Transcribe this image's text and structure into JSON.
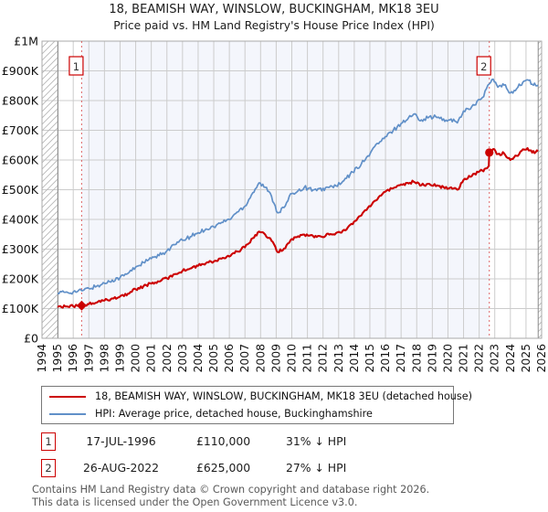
{
  "page": {
    "title_line1": "18, BEAMISH WAY, WINSLOW, BUCKINGHAM, MK18 3EU",
    "title_line2": "Price paid vs. HM Land Registry's House Price Index (HPI)"
  },
  "colors": {
    "property_line": "#cc0000",
    "hpi_line": "#6190c8",
    "ownership_shade": "#f4f6fc",
    "gridline": "#cccccc",
    "plot_border": "#aaaaaa",
    "hatch_line": "#b8b8b8",
    "hatch_edge": "#8c8c8c",
    "tick_text": "#111111"
  },
  "chart_data": {
    "type": "line",
    "title": "18, BEAMISH WAY, WINSLOW, BUCKINGHAM, MK18 3EU",
    "subtitle": "Price paid vs. HM Land Registry's House Price Index (HPI)",
    "x_axis": {
      "range": [
        1994,
        2026
      ],
      "tick_years": [
        1994,
        1995,
        1996,
        1997,
        1998,
        1999,
        2000,
        2001,
        2002,
        2003,
        2004,
        2005,
        2006,
        2007,
        2008,
        2009,
        2010,
        2011,
        2012,
        2013,
        2014,
        2015,
        2016,
        2017,
        2018,
        2019,
        2020,
        2021,
        2022,
        2023,
        2024,
        2025,
        2026
      ]
    },
    "y_axis": {
      "range": [
        0,
        1000000
      ],
      "ticks": [
        {
          "value": 0,
          "label": "£0"
        },
        {
          "value": 100000,
          "label": "£100K"
        },
        {
          "value": 200000,
          "label": "£200K"
        },
        {
          "value": 300000,
          "label": "£300K"
        },
        {
          "value": 400000,
          "label": "£400K"
        },
        {
          "value": 500000,
          "label": "£500K"
        },
        {
          "value": 600000,
          "label": "£600K"
        },
        {
          "value": 700000,
          "label": "£700K"
        },
        {
          "value": 800000,
          "label": "£800K"
        },
        {
          "value": 900000,
          "label": "£900K"
        },
        {
          "value": 1000000,
          "label": "£1M"
        }
      ]
    },
    "grid": true,
    "legend_position": "below",
    "ownership_shading": {
      "from_year": 1996.54,
      "to_year": 2022.65
    },
    "no_data_hatch": [
      {
        "from_year": 1994,
        "to_year": 1995.02
      },
      {
        "from_year": 2025.78,
        "to_year": 2026
      }
    ],
    "sale_markers": [
      {
        "label": "1",
        "year": 1996.54,
        "price_gbp": 110000,
        "shape": "diamond"
      },
      {
        "label": "2",
        "year": 2022.65,
        "price_gbp": 625000,
        "shape": "circle"
      }
    ],
    "series": [
      {
        "name": "18, BEAMISH WAY, WINSLOW, BUCKINGHAM, MK18 3EU (detached house)",
        "color": "#cc0000",
        "points_year_gbp": [
          [
            1995.0,
            105000
          ],
          [
            1995.5,
            107000
          ],
          [
            1996.0,
            107500
          ],
          [
            1996.54,
            110000
          ],
          [
            1997.0,
            115000
          ],
          [
            1997.5,
            120000
          ],
          [
            1998.0,
            127000
          ],
          [
            1998.5,
            134000
          ],
          [
            1999.0,
            141000
          ],
          [
            1999.5,
            150000
          ],
          [
            2000.0,
            165000
          ],
          [
            2000.5,
            175000
          ],
          [
            2001.0,
            184000
          ],
          [
            2001.5,
            191000
          ],
          [
            2002.0,
            202000
          ],
          [
            2002.5,
            216000
          ],
          [
            2003.0,
            227000
          ],
          [
            2003.5,
            235000
          ],
          [
            2004.0,
            244000
          ],
          [
            2004.5,
            253000
          ],
          [
            2005.0,
            258000
          ],
          [
            2005.5,
            268000
          ],
          [
            2006.0,
            275000
          ],
          [
            2006.5,
            292000
          ],
          [
            2007.0,
            306000
          ],
          [
            2007.5,
            337000
          ],
          [
            2007.9,
            359000
          ],
          [
            2008.3,
            349000
          ],
          [
            2008.7,
            328000
          ],
          [
            2009.1,
            290000
          ],
          [
            2009.5,
            302000
          ],
          [
            2010.0,
            334000
          ],
          [
            2010.8,
            349000
          ],
          [
            2011.6,
            341000
          ],
          [
            2012.4,
            349000
          ],
          [
            2013.1,
            356000
          ],
          [
            2013.9,
            384000
          ],
          [
            2014.7,
            431000
          ],
          [
            2015.3,
            462000
          ],
          [
            2015.9,
            492000
          ],
          [
            2016.5,
            505000
          ],
          [
            2017.0,
            518000
          ],
          [
            2017.8,
            527000
          ],
          [
            2018.3,
            515000
          ],
          [
            2018.8,
            520000
          ],
          [
            2019.4,
            513000
          ],
          [
            2019.8,
            505000
          ],
          [
            2020.2,
            508000
          ],
          [
            2020.6,
            500000
          ],
          [
            2021.0,
            533000
          ],
          [
            2021.7,
            554000
          ],
          [
            2022.2,
            565000
          ],
          [
            2022.5,
            572000
          ],
          [
            2022.62,
            580000
          ],
          [
            2022.65,
            625000
          ],
          [
            2022.9,
            637000
          ],
          [
            2023.2,
            620000
          ],
          [
            2023.6,
            622000
          ],
          [
            2024.0,
            600000
          ],
          [
            2024.4,
            614000
          ],
          [
            2024.8,
            636000
          ],
          [
            2025.1,
            640000
          ],
          [
            2025.4,
            625000
          ],
          [
            2025.78,
            630000
          ]
        ]
      },
      {
        "name": "HPI: Average price, detached house, Buckinghamshire",
        "color": "#6190c8",
        "points_year_gbp": [
          [
            1995.0,
            152000
          ],
          [
            1995.5,
            155000
          ],
          [
            1996.0,
            156000
          ],
          [
            1996.54,
            160000
          ],
          [
            1997.0,
            168000
          ],
          [
            1997.5,
            175000
          ],
          [
            1998.0,
            185000
          ],
          [
            1998.5,
            196000
          ],
          [
            1999.0,
            205000
          ],
          [
            1999.5,
            218000
          ],
          [
            2000.0,
            240000
          ],
          [
            2000.5,
            255000
          ],
          [
            2001.0,
            268000
          ],
          [
            2001.5,
            278000
          ],
          [
            2002.0,
            295000
          ],
          [
            2002.5,
            315000
          ],
          [
            2003.0,
            330000
          ],
          [
            2003.5,
            342000
          ],
          [
            2004.0,
            355000
          ],
          [
            2004.5,
            368000
          ],
          [
            2005.0,
            375000
          ],
          [
            2005.5,
            390000
          ],
          [
            2006.0,
            400000
          ],
          [
            2006.5,
            425000
          ],
          [
            2007.0,
            445000
          ],
          [
            2007.5,
            490000
          ],
          [
            2007.9,
            523000
          ],
          [
            2008.3,
            508000
          ],
          [
            2008.7,
            478000
          ],
          [
            2009.1,
            422000
          ],
          [
            2009.5,
            440000
          ],
          [
            2010.0,
            487000
          ],
          [
            2010.8,
            508000
          ],
          [
            2011.6,
            497000
          ],
          [
            2012.4,
            508000
          ],
          [
            2013.1,
            518000
          ],
          [
            2013.9,
            559000
          ],
          [
            2014.7,
            600000
          ],
          [
            2015.3,
            645000
          ],
          [
            2015.9,
            672000
          ],
          [
            2016.5,
            700000
          ],
          [
            2017.0,
            723000
          ],
          [
            2017.8,
            754000
          ],
          [
            2018.3,
            735000
          ],
          [
            2018.8,
            745000
          ],
          [
            2019.4,
            744000
          ],
          [
            2019.8,
            730000
          ],
          [
            2020.2,
            738000
          ],
          [
            2020.6,
            725000
          ],
          [
            2021.0,
            765000
          ],
          [
            2021.7,
            785000
          ],
          [
            2022.2,
            810000
          ],
          [
            2022.65,
            856000
          ],
          [
            2022.9,
            872000
          ],
          [
            2023.2,
            845000
          ],
          [
            2023.6,
            852000
          ],
          [
            2024.0,
            826000
          ],
          [
            2024.4,
            840000
          ],
          [
            2024.8,
            862000
          ],
          [
            2025.1,
            870000
          ],
          [
            2025.4,
            855000
          ],
          [
            2025.78,
            852000
          ]
        ]
      }
    ]
  },
  "legend": {
    "entries": [
      {
        "swatch_color": "#cc0000",
        "swatch_weight": 2.5,
        "label": "18, BEAMISH WAY, WINSLOW, BUCKINGHAM, MK18 3EU (detached house)"
      },
      {
        "swatch_color": "#6190c8",
        "swatch_weight": 2.5,
        "label": "HPI: Average price, detached house, Buckinghamshire"
      }
    ]
  },
  "transactions": [
    {
      "num": "1",
      "date": "17-JUL-1996",
      "price": "£110,000",
      "vs_hpi": "31% ↓ HPI"
    },
    {
      "num": "2",
      "date": "26-AUG-2022",
      "price": "£625,000",
      "vs_hpi": "27% ↓ HPI"
    }
  ],
  "footer": {
    "line1": "Contains HM Land Registry data © Crown copyright and database right 2026.",
    "line2": "This data is licensed under the Open Government Licence v3.0."
  }
}
